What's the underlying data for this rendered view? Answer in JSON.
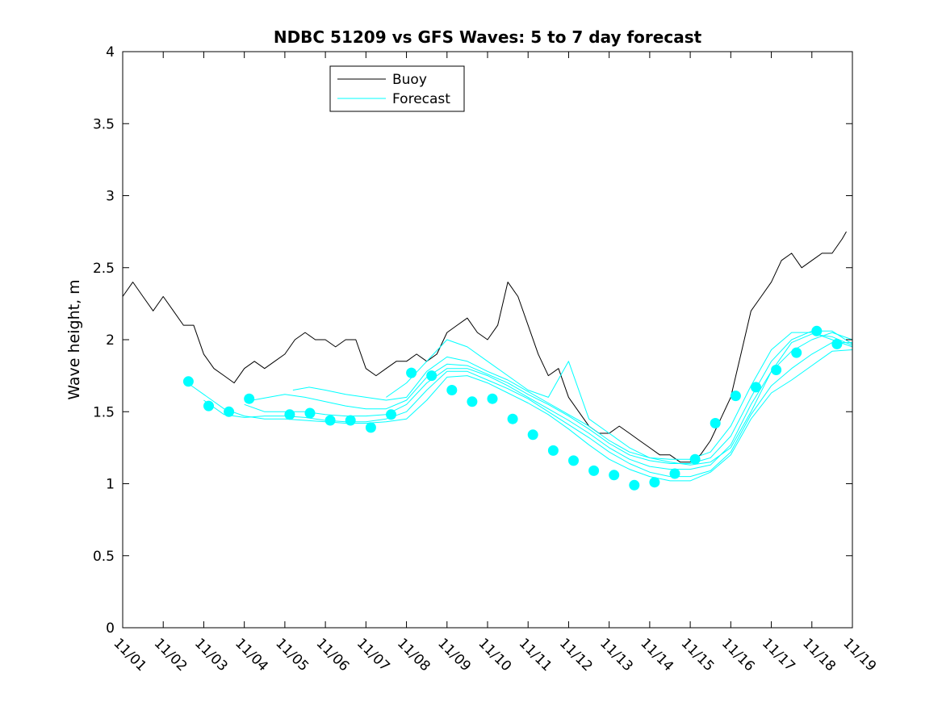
{
  "chart_data": {
    "type": "line",
    "title": "NDBC 51209 vs GFS Waves: 5 to 7 day forecast",
    "xlabel": "",
    "ylabel": "Wave height, m",
    "xlim": [
      0,
      18
    ],
    "ylim": [
      0,
      4
    ],
    "xtick_labels": [
      "11/01",
      "11/02",
      "11/03",
      "11/04",
      "11/05",
      "11/06",
      "11/07",
      "11/08",
      "11/09",
      "11/10",
      "11/11",
      "11/12",
      "11/13",
      "11/14",
      "11/15",
      "11/16",
      "11/17",
      "11/18",
      "11/19"
    ],
    "ytick_values": [
      0,
      0.5,
      1,
      1.5,
      2,
      2.5,
      3,
      3.5,
      4
    ],
    "ytick_labels": [
      "0",
      "0.5",
      "1",
      "1.5",
      "2",
      "2.5",
      "3",
      "3.5",
      "4"
    ],
    "grid": false,
    "legend": {
      "placement": "top-left",
      "entries": [
        "Buoy",
        "Forecast"
      ]
    },
    "colors": {
      "buoy": "#000000",
      "forecast": "#00ffff"
    },
    "series": [
      {
        "name": "Buoy",
        "x": [
          0,
          0.25,
          0.5,
          0.75,
          1,
          1.25,
          1.5,
          1.75,
          2,
          2.25,
          2.5,
          2.75,
          3,
          3.25,
          3.5,
          3.75,
          4,
          4.25,
          4.5,
          4.75,
          5,
          5.25,
          5.5,
          5.75,
          6,
          6.25,
          6.5,
          6.75,
          7,
          7.25,
          7.5,
          7.75,
          8,
          8.25,
          8.5,
          8.75,
          9,
          9.25,
          9.5,
          9.75,
          10,
          10.25,
          10.5,
          10.75,
          11,
          11.25,
          11.5,
          11.75,
          12,
          12.25,
          12.5,
          12.75,
          13,
          13.25,
          13.5,
          13.75,
          14,
          14.25,
          14.5,
          14.75,
          15,
          15.25,
          15.5,
          15.75,
          16,
          16.25,
          16.5,
          16.75,
          17,
          17.25,
          17.5,
          17.75,
          17.85
        ],
        "y": [
          2.3,
          2.4,
          2.3,
          2.2,
          2.3,
          2.2,
          2.1,
          2.1,
          1.9,
          1.8,
          1.75,
          1.7,
          1.8,
          1.85,
          1.8,
          1.85,
          1.9,
          2.0,
          2.05,
          2.0,
          2.0,
          1.95,
          2.0,
          2.0,
          1.8,
          1.75,
          1.8,
          1.85,
          1.85,
          1.9,
          1.85,
          1.9,
          2.05,
          2.1,
          2.15,
          2.05,
          2.0,
          2.1,
          2.4,
          2.3,
          2.1,
          1.9,
          1.75,
          1.8,
          1.6,
          1.5,
          1.4,
          1.35,
          1.35,
          1.4,
          1.35,
          1.3,
          1.25,
          1.2,
          1.2,
          1.15,
          1.15,
          1.2,
          1.3,
          1.45,
          1.6,
          1.9,
          2.2,
          2.3,
          2.4,
          2.55,
          2.6,
          2.5,
          2.55,
          2.6,
          2.6,
          2.7,
          2.75
        ]
      },
      {
        "name": "Forecast",
        "x": [
          1.6,
          2,
          2.5,
          3,
          3.5,
          4,
          4.5,
          5,
          5.5,
          6,
          6.5,
          7,
          7.5,
          8,
          8.5,
          9,
          9.5,
          10,
          10.5,
          11,
          11.5,
          12,
          12.5,
          13,
          13.5,
          14,
          14.5,
          15,
          15.5,
          16,
          16.5,
          17,
          17.5,
          18
        ],
        "y": [
          1.7,
          1.62,
          1.52,
          1.47,
          1.45,
          1.45,
          1.44,
          1.43,
          1.42,
          1.42,
          1.43,
          1.45,
          1.58,
          1.74,
          1.75,
          1.7,
          1.63,
          1.56,
          1.48,
          1.38,
          1.27,
          1.17,
          1.1,
          1.05,
          1.02,
          1.02,
          1.08,
          1.2,
          1.45,
          1.63,
          1.72,
          1.82,
          1.92,
          1.93
        ]
      },
      {
        "name": "Forecast",
        "x": [
          2,
          2.5,
          3,
          3.5,
          4,
          4.5,
          5,
          5.5,
          6,
          6.5,
          7,
          7.5,
          8,
          8.5,
          9,
          9.5,
          10,
          10.5,
          11,
          11.5,
          12,
          12.5,
          13,
          13.5,
          14,
          14.5,
          15,
          15.5,
          16,
          16.5,
          17,
          17.5,
          18
        ],
        "y": [
          1.58,
          1.48,
          1.46,
          1.47,
          1.47,
          1.46,
          1.44,
          1.43,
          1.43,
          1.45,
          1.5,
          1.65,
          1.78,
          1.78,
          1.72,
          1.66,
          1.59,
          1.5,
          1.41,
          1.32,
          1.22,
          1.14,
          1.08,
          1.05,
          1.05,
          1.09,
          1.22,
          1.48,
          1.68,
          1.8,
          1.9,
          1.98,
          1.98
        ]
      },
      {
        "name": "Forecast",
        "x": [
          3,
          3.5,
          4,
          4.5,
          5,
          5.5,
          6,
          6.5,
          7,
          7.5,
          8,
          8.5,
          9,
          9.5,
          10,
          10.5,
          11,
          11.5,
          12,
          12.5,
          13,
          13.5,
          14,
          14.5,
          15,
          15.5,
          16,
          16.5,
          17,
          17.5,
          18
        ],
        "y": [
          1.55,
          1.5,
          1.5,
          1.5,
          1.48,
          1.47,
          1.47,
          1.48,
          1.55,
          1.7,
          1.8,
          1.8,
          1.75,
          1.68,
          1.6,
          1.52,
          1.44,
          1.35,
          1.25,
          1.17,
          1.12,
          1.1,
          1.1,
          1.13,
          1.27,
          1.55,
          1.78,
          1.92,
          2.0,
          2.05,
          2.0
        ]
      },
      {
        "name": "Forecast",
        "x": [
          3.2,
          3.6,
          4,
          4.5,
          5,
          5.5,
          6,
          6.5,
          7,
          7.5,
          8,
          8.5,
          9,
          9.5,
          10,
          10.5,
          11,
          11.5,
          12,
          12.5,
          13,
          13.5,
          14,
          14.5,
          15,
          15.5,
          16,
          16.5,
          17,
          17.5,
          18
        ],
        "y": [
          1.58,
          1.6,
          1.62,
          1.6,
          1.57,
          1.54,
          1.52,
          1.52,
          1.58,
          1.74,
          1.83,
          1.82,
          1.76,
          1.7,
          1.62,
          1.55,
          1.47,
          1.38,
          1.28,
          1.2,
          1.16,
          1.14,
          1.14,
          1.18,
          1.33,
          1.6,
          1.85,
          2.0,
          2.06,
          2.06,
          1.97
        ]
      },
      {
        "name": "Forecast",
        "x": [
          4.2,
          4.6,
          5,
          5.5,
          6,
          6.5,
          7,
          7.5,
          8,
          8.5,
          9,
          9.5,
          10,
          10.5,
          11,
          11.5,
          12,
          12.5,
          13,
          13.5,
          14,
          14.5,
          15,
          15.5,
          16,
          16.5,
          17,
          17.5,
          18
        ],
        "y": [
          1.65,
          1.67,
          1.65,
          1.62,
          1.6,
          1.58,
          1.6,
          1.78,
          1.88,
          1.85,
          1.78,
          1.72,
          1.64,
          1.56,
          1.48,
          1.4,
          1.3,
          1.22,
          1.18,
          1.17,
          1.17,
          1.22,
          1.4,
          1.68,
          1.93,
          2.05,
          2.05,
          2.0,
          1.95
        ]
      },
      {
        "name": "Forecast",
        "x": [
          6.5,
          7,
          7.5,
          8,
          8.5,
          9,
          9.5,
          10,
          10.5,
          11,
          11.5,
          12,
          12.5,
          13,
          13.5,
          14,
          14.5,
          15,
          15.5,
          16,
          16.5,
          17,
          17.5,
          18
        ],
        "y": [
          1.6,
          1.7,
          1.85,
          2.0,
          1.95,
          1.85,
          1.75,
          1.65,
          1.6,
          1.85,
          1.45,
          1.35,
          1.25,
          1.18,
          1.15,
          1.13,
          1.15,
          1.25,
          1.5,
          1.78,
          1.98,
          2.04,
          2.02,
          1.96
        ]
      },
      {
        "name": "Forecast (daily markers)",
        "x": [
          1.62,
          2.12,
          2.62,
          3.12,
          4.12,
          4.62,
          5.12,
          5.62,
          6.12,
          6.62,
          7.12,
          7.62,
          8.12,
          8.62,
          9.12,
          9.62,
          10.12,
          10.62,
          11.12,
          11.62,
          12.12,
          12.62,
          13.12,
          13.62,
          14.12,
          14.62,
          15.12,
          15.62,
          16.12,
          16.62,
          17.12,
          17.62
        ],
        "y": [
          1.71,
          1.54,
          1.5,
          1.59,
          1.48,
          1.49,
          1.44,
          1.44,
          1.39,
          1.48,
          1.77,
          1.75,
          1.65,
          1.57,
          1.59,
          1.45,
          1.34,
          1.23,
          1.16,
          1.09,
          1.06,
          0.99,
          1.01,
          1.07,
          1.17,
          1.42,
          1.61,
          1.67,
          1.79,
          1.91,
          2.06,
          1.97
        ]
      }
    ]
  }
}
